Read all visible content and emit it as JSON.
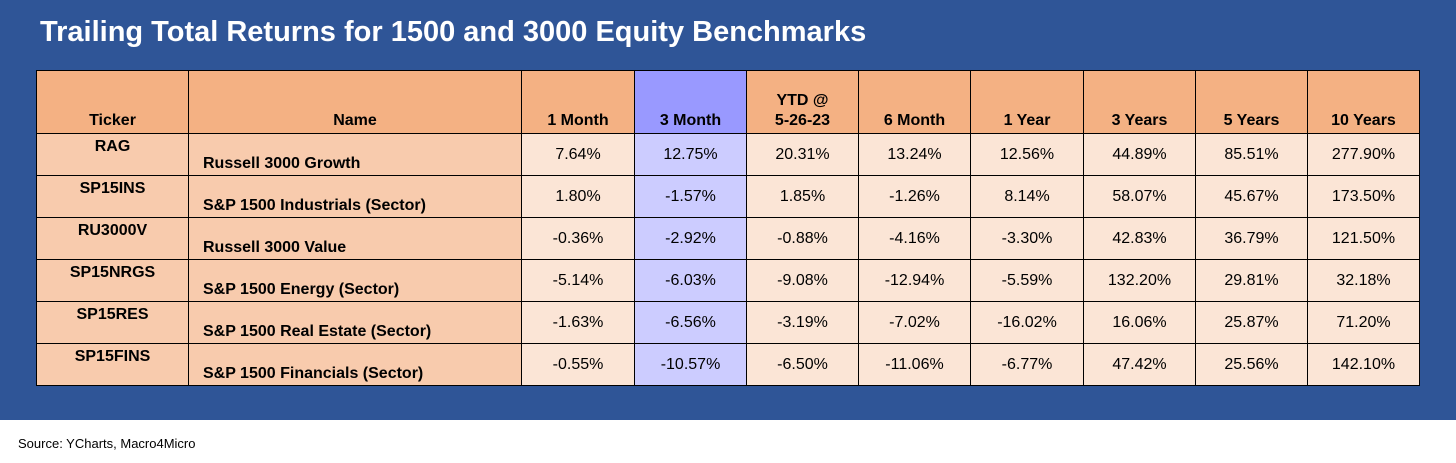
{
  "title": "Trailing Total Returns for 1500 and 3000 Equity Benchmarks",
  "colors": {
    "panel_background": "#2f5597",
    "header_fill": "#f4b183",
    "label_column_fill": "#f8cbad",
    "value_fill": "#fbe5d6",
    "highlight_header_fill": "#9999ff",
    "highlight_value_fill": "#ccccff"
  },
  "table": {
    "headers": {
      "ticker": "Ticker",
      "name": "Name",
      "m1": "1 Month",
      "m3": "3 Month",
      "ytd_line1": "YTD @",
      "ytd_line2": "5-26-23",
      "m6": "6 Month",
      "y1": "1 Year",
      "y3": "3 Years",
      "y5": "5 Years",
      "y10": "10 Years"
    },
    "highlighted_column": "3 Month",
    "rows": [
      {
        "ticker": "RAG",
        "name": "Russell 3000 Growth",
        "m1": "7.64%",
        "m3": "12.75%",
        "ytd": "20.31%",
        "m6": "13.24%",
        "y1": "12.56%",
        "y3": "44.89%",
        "y5": "85.51%",
        "y10": "277.90%"
      },
      {
        "ticker": "SP15INS",
        "name": "S&P 1500 Industrials (Sector)",
        "m1": "1.80%",
        "m3": "-1.57%",
        "ytd": "1.85%",
        "m6": "-1.26%",
        "y1": "8.14%",
        "y3": "58.07%",
        "y5": "45.67%",
        "y10": "173.50%"
      },
      {
        "ticker": "RU3000V",
        "name": "Russell 3000 Value",
        "m1": "-0.36%",
        "m3": "-2.92%",
        "ytd": "-0.88%",
        "m6": "-4.16%",
        "y1": "-3.30%",
        "y3": "42.83%",
        "y5": "36.79%",
        "y10": "121.50%"
      },
      {
        "ticker": "SP15NRGS",
        "name": "S&P 1500 Energy (Sector)",
        "m1": "-5.14%",
        "m3": "-6.03%",
        "ytd": "-9.08%",
        "m6": "-12.94%",
        "y1": "-5.59%",
        "y3": "132.20%",
        "y5": "29.81%",
        "y10": "32.18%"
      },
      {
        "ticker": "SP15RES",
        "name": "S&P 1500 Real Estate (Sector)",
        "m1": "-1.63%",
        "m3": "-6.56%",
        "ytd": "-3.19%",
        "m6": "-7.02%",
        "y1": "-16.02%",
        "y3": "16.06%",
        "y5": "25.87%",
        "y10": "71.20%"
      },
      {
        "ticker": "SP15FINS",
        "name": "S&P 1500 Financials (Sector)",
        "m1": "-0.55%",
        "m3": "-10.57%",
        "ytd": "-6.50%",
        "m6": "-11.06%",
        "y1": "-6.77%",
        "y3": "47.42%",
        "y5": "25.56%",
        "y10": "142.10%"
      }
    ]
  },
  "source": "Source: YCharts, Macro4Micro"
}
